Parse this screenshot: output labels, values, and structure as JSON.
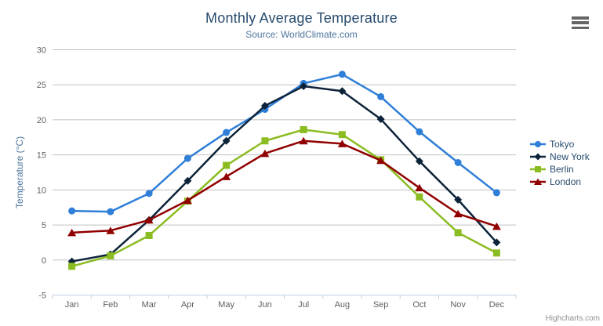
{
  "chart": {
    "title": "Monthly Average Temperature",
    "subtitle": "Source: WorldClimate.com",
    "credits": "Highcharts.com"
  },
  "chart_data": {
    "type": "line",
    "title": "Monthly Average Temperature",
    "subtitle": "Source: WorldClimate.com",
    "categories": [
      "Jan",
      "Feb",
      "Mar",
      "Apr",
      "May",
      "Jun",
      "Jul",
      "Aug",
      "Sep",
      "Oct",
      "Nov",
      "Dec"
    ],
    "series": [
      {
        "name": "Tokyo",
        "color": "#2f7ed8",
        "marker": "circle",
        "values": [
          7.0,
          6.9,
          9.5,
          14.5,
          18.2,
          21.5,
          25.2,
          26.5,
          23.3,
          18.3,
          13.9,
          9.6
        ]
      },
      {
        "name": "New York",
        "color": "#0d233a",
        "marker": "diamond",
        "values": [
          -0.2,
          0.8,
          5.7,
          11.3,
          17.0,
          22.0,
          24.8,
          24.1,
          20.1,
          14.1,
          8.6,
          2.5
        ]
      },
      {
        "name": "Berlin",
        "color": "#8bbc21",
        "marker": "square",
        "values": [
          -0.9,
          0.6,
          3.5,
          8.4,
          13.5,
          17.0,
          18.6,
          17.9,
          14.3,
          9.0,
          3.9,
          1.0
        ]
      },
      {
        "name": "London",
        "color": "#910000",
        "marker": "triangle",
        "values": [
          3.9,
          4.2,
          5.7,
          8.5,
          11.9,
          15.2,
          17.0,
          16.6,
          14.2,
          10.3,
          6.6,
          4.8
        ]
      }
    ],
    "xlabel": "",
    "ylabel": "Temperature (°C)",
    "ylim": [
      -5,
      30
    ],
    "ytick_step": 5,
    "yticks": [
      -5,
      0,
      5,
      10,
      15,
      20,
      25,
      30
    ],
    "grid": true,
    "legend_position": "right"
  },
  "colors": {
    "gridline": "#C0C0C0",
    "axis_line": "#C0D0E0",
    "tick_label": "#606060",
    "title": "#274b6d",
    "subtitle": "#4d759e",
    "axis_title": "#4d759e",
    "legend_text": "#274b6d",
    "credits": "#909090",
    "export_icon": "#666666"
  }
}
